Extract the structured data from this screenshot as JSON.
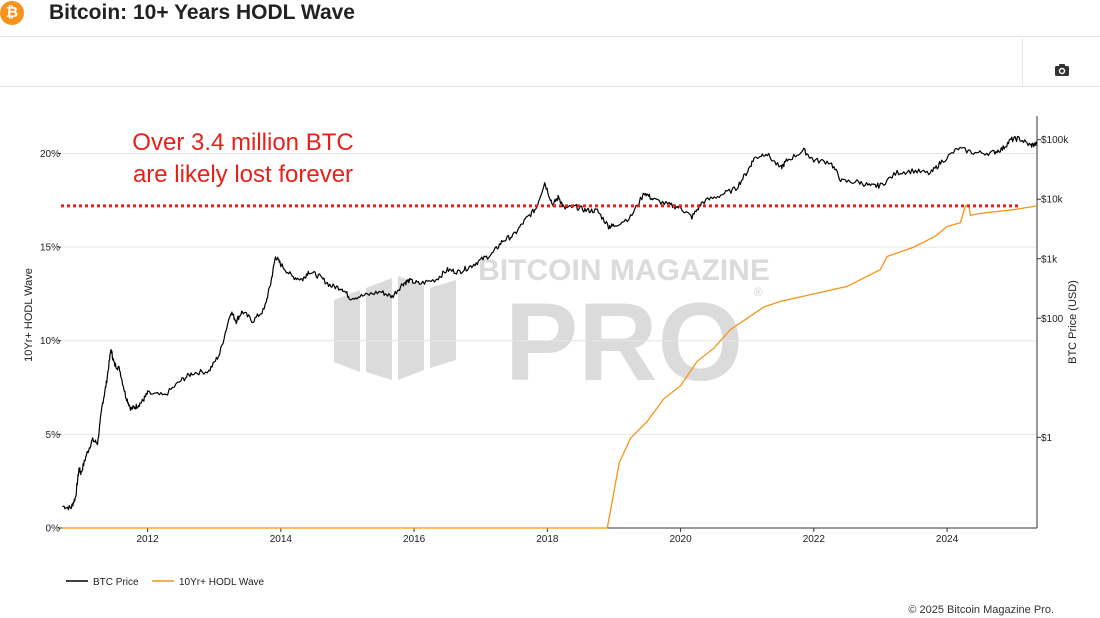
{
  "header": {
    "title": "Bitcoin: 10+ Years HODL Wave",
    "logo_glyph": "₿",
    "logo_color": "#f7931a"
  },
  "toolbar": {
    "camera_icon": "camera-icon"
  },
  "footer": {
    "copyright": "© 2025 Bitcoin Magazine Pro."
  },
  "watermark": {
    "line1": "BITCOIN MAGAZINE",
    "line2": "PRO",
    "mark": "®"
  },
  "chart_data": {
    "type": "line",
    "title": "Bitcoin: 10+ Years HODL Wave",
    "annotation": {
      "lines": [
        "Over 3.4 million BTC",
        "are likely lost forever"
      ],
      "color": "#e8201a",
      "reference_line_value_percent": 17.2
    },
    "x_axis": {
      "range": [
        2010.7,
        2025.35
      ],
      "ticks": [
        2012,
        2014,
        2016,
        2018,
        2020,
        2022,
        2024
      ],
      "tick_labels": [
        "2012",
        "2014",
        "2016",
        "2018",
        "2020",
        "2022",
        "2024"
      ]
    },
    "y_left": {
      "label": "10Yr+ HODL Wave",
      "range": [
        0,
        22
      ],
      "ticks": [
        0,
        5,
        10,
        15,
        20
      ],
      "tick_labels": [
        "0%",
        "5%",
        "10%",
        "15%",
        "20%"
      ]
    },
    "y_right": {
      "label": "BTC Price (USD)",
      "scale": "log",
      "range": [
        0.03,
        250000
      ],
      "ticks": [
        1,
        100,
        1000,
        10000,
        100000
      ],
      "tick_labels": [
        "$1",
        "$100",
        "$1k",
        "$10k",
        "$100k"
      ]
    },
    "legend": [
      {
        "name": "BTC Price",
        "color": "#000000"
      },
      {
        "name": "10Yr+ HODL Wave",
        "color": "#f7931a"
      }
    ],
    "series": [
      {
        "name": "BTC Price",
        "axis": "right",
        "color": "#000000",
        "points": [
          [
            2010.72,
            0.07
          ],
          [
            2010.85,
            0.065
          ],
          [
            2010.92,
            0.1
          ],
          [
            2010.97,
            0.3
          ],
          [
            2011.0,
            0.25
          ],
          [
            2011.08,
            0.5
          ],
          [
            2011.17,
            0.9
          ],
          [
            2011.25,
            0.8
          ],
          [
            2011.32,
            3.5
          ],
          [
            2011.38,
            8
          ],
          [
            2011.45,
            30
          ],
          [
            2011.5,
            17
          ],
          [
            2011.58,
            14
          ],
          [
            2011.67,
            5
          ],
          [
            2011.75,
            3
          ],
          [
            2011.83,
            3.3
          ],
          [
            2011.92,
            4
          ],
          [
            2012.0,
            5.5
          ],
          [
            2012.25,
            5
          ],
          [
            2012.5,
            9
          ],
          [
            2012.67,
            12
          ],
          [
            2012.92,
            13
          ],
          [
            2013.08,
            25
          ],
          [
            2013.25,
            130
          ],
          [
            2013.33,
            90
          ],
          [
            2013.42,
            130
          ],
          [
            2013.58,
            90
          ],
          [
            2013.75,
            140
          ],
          [
            2013.85,
            400
          ],
          [
            2013.92,
            1100
          ],
          [
            2014.0,
            800
          ],
          [
            2014.17,
            500
          ],
          [
            2014.33,
            450
          ],
          [
            2014.42,
            620
          ],
          [
            2014.58,
            500
          ],
          [
            2014.75,
            350
          ],
          [
            2014.92,
            320
          ],
          [
            2015.04,
            220
          ],
          [
            2015.25,
            240
          ],
          [
            2015.5,
            280
          ],
          [
            2015.67,
            230
          ],
          [
            2015.83,
            380
          ],
          [
            2015.92,
            430
          ],
          [
            2016.08,
            380
          ],
          [
            2016.33,
            450
          ],
          [
            2016.5,
            650
          ],
          [
            2016.67,
            600
          ],
          [
            2016.83,
            730
          ],
          [
            2017.0,
            950
          ],
          [
            2017.17,
            1200
          ],
          [
            2017.33,
            2000
          ],
          [
            2017.5,
            2500
          ],
          [
            2017.67,
            4500
          ],
          [
            2017.83,
            7000
          ],
          [
            2017.96,
            19000
          ],
          [
            2018.08,
            8000
          ],
          [
            2018.17,
            11000
          ],
          [
            2018.25,
            7000
          ],
          [
            2018.42,
            7500
          ],
          [
            2018.58,
            6500
          ],
          [
            2018.75,
            6400
          ],
          [
            2018.92,
            3500
          ],
          [
            2019.0,
            3600
          ],
          [
            2019.25,
            5000
          ],
          [
            2019.46,
            13000
          ],
          [
            2019.58,
            10000
          ],
          [
            2019.83,
            8000
          ],
          [
            2020.0,
            7200
          ],
          [
            2020.17,
            5000
          ],
          [
            2020.33,
            9000
          ],
          [
            2020.58,
            11500
          ],
          [
            2020.83,
            15000
          ],
          [
            2021.0,
            29000
          ],
          [
            2021.1,
            48000
          ],
          [
            2021.28,
            60000
          ],
          [
            2021.5,
            33000
          ],
          [
            2021.6,
            45000
          ],
          [
            2021.85,
            66000
          ],
          [
            2022.0,
            45000
          ],
          [
            2022.25,
            42000
          ],
          [
            2022.42,
            20000
          ],
          [
            2022.67,
            19500
          ],
          [
            2022.87,
            16500
          ],
          [
            2023.0,
            17000
          ],
          [
            2023.25,
            28000
          ],
          [
            2023.5,
            30000
          ],
          [
            2023.75,
            27000
          ],
          [
            2023.92,
            43000
          ],
          [
            2024.17,
            71000
          ],
          [
            2024.42,
            60000
          ],
          [
            2024.67,
            60000
          ],
          [
            2024.83,
            70000
          ],
          [
            2024.96,
            100000
          ],
          [
            2025.08,
            105000
          ],
          [
            2025.25,
            80000
          ],
          [
            2025.35,
            85000
          ]
        ]
      },
      {
        "name": "10Yr+ HODL Wave",
        "axis": "left",
        "color": "#f7931a",
        "points": [
          [
            2010.72,
            0
          ],
          [
            2018.9,
            0
          ],
          [
            2019.08,
            3.5
          ],
          [
            2019.25,
            4.8
          ],
          [
            2019.5,
            5.7
          ],
          [
            2019.75,
            6.9
          ],
          [
            2020.0,
            7.6
          ],
          [
            2020.25,
            8.9
          ],
          [
            2020.5,
            9.6
          ],
          [
            2020.75,
            10.6
          ],
          [
            2021.0,
            11.2
          ],
          [
            2021.25,
            11.8
          ],
          [
            2021.5,
            12.1
          ],
          [
            2022.0,
            12.5
          ],
          [
            2022.5,
            12.9
          ],
          [
            2023.0,
            13.8
          ],
          [
            2023.1,
            14.5
          ],
          [
            2023.5,
            15.0
          ],
          [
            2023.83,
            15.6
          ],
          [
            2024.0,
            16.1
          ],
          [
            2024.2,
            16.3
          ],
          [
            2024.25,
            16.9
          ],
          [
            2024.28,
            17.2
          ],
          [
            2024.33,
            17.2
          ],
          [
            2024.35,
            16.7
          ],
          [
            2024.5,
            16.8
          ],
          [
            2025.0,
            17.0
          ],
          [
            2025.35,
            17.2
          ]
        ]
      }
    ]
  }
}
